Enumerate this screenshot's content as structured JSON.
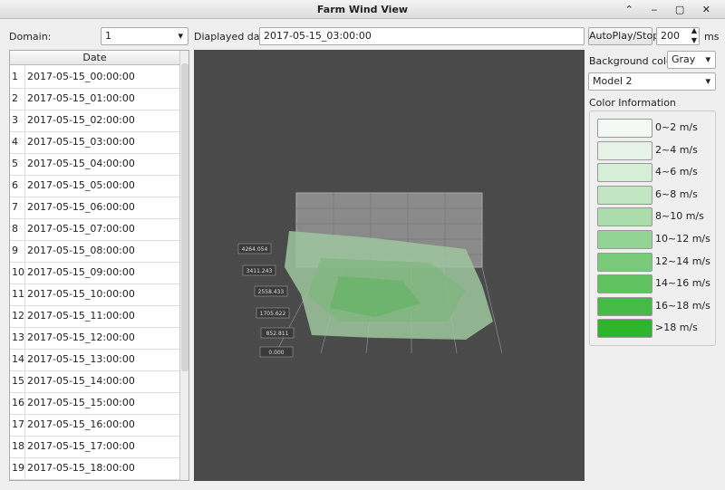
{
  "window": {
    "title": "Farm Wind View"
  },
  "toolbar": {
    "domain_label": "Domain:",
    "domain_value": "1",
    "date_label": "Diaplayed date:",
    "date_value": "2017-05-15_03:00:00",
    "play_button": "AutoPlay/Stop",
    "interval_value": "200",
    "interval_unit": "ms"
  },
  "table": {
    "header": "Date",
    "rows": [
      [
        "1",
        "2017-05-15_00:00:00"
      ],
      [
        "2",
        "2017-05-15_01:00:00"
      ],
      [
        "3",
        "2017-05-15_02:00:00"
      ],
      [
        "4",
        "2017-05-15_03:00:00"
      ],
      [
        "5",
        "2017-05-15_04:00:00"
      ],
      [
        "6",
        "2017-05-15_05:00:00"
      ],
      [
        "7",
        "2017-05-15_06:00:00"
      ],
      [
        "8",
        "2017-05-15_07:00:00"
      ],
      [
        "9",
        "2017-05-15_08:00:00"
      ],
      [
        "10",
        "2017-05-15_09:00:00"
      ],
      [
        "11",
        "2017-05-15_10:00:00"
      ],
      [
        "12",
        "2017-05-15_11:00:00"
      ],
      [
        "13",
        "2017-05-15_12:00:00"
      ],
      [
        "14",
        "2017-05-15_13:00:00"
      ],
      [
        "15",
        "2017-05-15_14:00:00"
      ],
      [
        "16",
        "2017-05-15_15:00:00"
      ],
      [
        "17",
        "2017-05-15_16:00:00"
      ],
      [
        "18",
        "2017-05-15_17:00:00"
      ],
      [
        "19",
        "2017-05-15_18:00:00"
      ]
    ]
  },
  "plot": {
    "axis_labels": [
      "4264.054",
      "3411.243",
      "2558.433",
      "1705.622",
      "852.811",
      "0.000"
    ]
  },
  "side_panel": {
    "background_label": "Background color:",
    "background_value": "Gray",
    "model_value": "Model 2",
    "legend_title": "Color Information",
    "legend": [
      {
        "label": "0~2 m/s",
        "color": "#f5f9f5"
      },
      {
        "label": "2~4 m/s",
        "color": "#e7f3e7"
      },
      {
        "label": "4~6 m/s",
        "color": "#d6edd6"
      },
      {
        "label": "6~8 m/s",
        "color": "#c2e6c2"
      },
      {
        "label": "8~10 m/s",
        "color": "#acdcac"
      },
      {
        "label": "10~12 m/s",
        "color": "#93d393"
      },
      {
        "label": "12~14 m/s",
        "color": "#79ca79"
      },
      {
        "label": "14~16 m/s",
        "color": "#5fc25f"
      },
      {
        "label": "16~18 m/s",
        "color": "#46ba46"
      },
      {
        "label": ">18 m/s",
        "color": "#2db52d"
      }
    ]
  }
}
